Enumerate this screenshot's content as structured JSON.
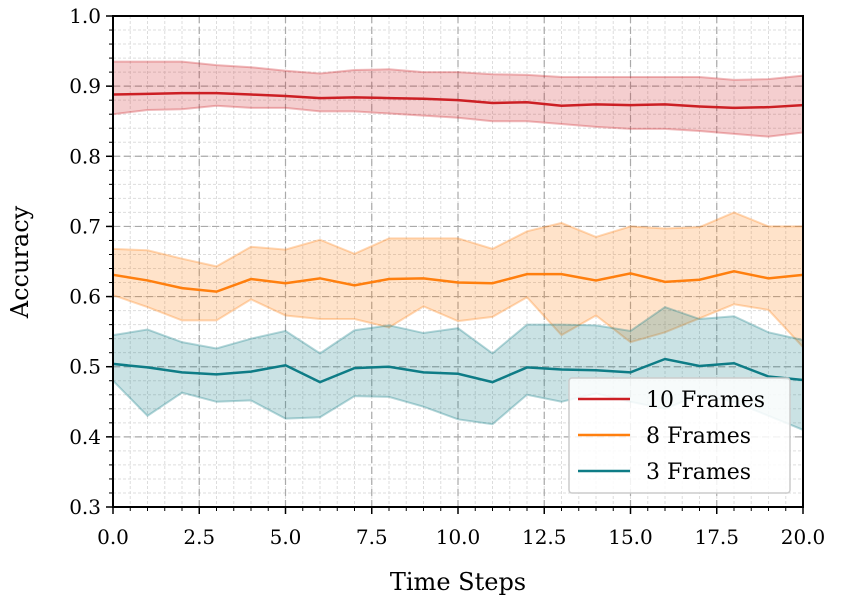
{
  "chart_data": {
    "type": "line",
    "title": "",
    "xlabel": "Time Steps",
    "ylabel": "Accuracy",
    "xlim": [
      0,
      20
    ],
    "ylim": [
      0.3,
      1.0
    ],
    "xticks": [
      "0.0",
      "2.5",
      "5.0",
      "7.5",
      "10.0",
      "12.5",
      "15.0",
      "17.5",
      "20.0"
    ],
    "yticks": [
      "0.3",
      "0.4",
      "0.5",
      "0.6",
      "0.7",
      "0.8",
      "0.9",
      "1.0"
    ],
    "grid": true,
    "minor_grid": true,
    "legend_position": "lower-right",
    "x": [
      0,
      1,
      2,
      3,
      4,
      5,
      6,
      7,
      8,
      9,
      10,
      11,
      12,
      13,
      14,
      15,
      16,
      17,
      18,
      19,
      20
    ],
    "series": [
      {
        "name": "10 Frames",
        "color": "#cc1f24",
        "mean": [
          0.888,
          0.889,
          0.89,
          0.89,
          0.888,
          0.886,
          0.883,
          0.884,
          0.883,
          0.882,
          0.88,
          0.876,
          0.877,
          0.872,
          0.874,
          0.873,
          0.874,
          0.871,
          0.869,
          0.87,
          0.873
        ],
        "upper": [
          0.935,
          0.935,
          0.935,
          0.93,
          0.927,
          0.922,
          0.918,
          0.923,
          0.924,
          0.92,
          0.92,
          0.917,
          0.916,
          0.913,
          0.913,
          0.913,
          0.913,
          0.913,
          0.909,
          0.91,
          0.915
        ],
        "lower": [
          0.86,
          0.866,
          0.867,
          0.872,
          0.869,
          0.869,
          0.864,
          0.864,
          0.861,
          0.858,
          0.855,
          0.85,
          0.85,
          0.846,
          0.842,
          0.839,
          0.839,
          0.836,
          0.832,
          0.828,
          0.834
        ]
      },
      {
        "name": "8 Frames",
        "color": "#ff7f0e",
        "mean": [
          0.631,
          0.623,
          0.612,
          0.607,
          0.625,
          0.619,
          0.626,
          0.616,
          0.625,
          0.626,
          0.62,
          0.619,
          0.632,
          0.632,
          0.623,
          0.633,
          0.621,
          0.624,
          0.636,
          0.626,
          0.631
        ],
        "upper": [
          0.668,
          0.666,
          0.654,
          0.643,
          0.671,
          0.667,
          0.681,
          0.661,
          0.683,
          0.683,
          0.683,
          0.668,
          0.693,
          0.705,
          0.685,
          0.7,
          0.697,
          0.699,
          0.72,
          0.7,
          0.7
        ],
        "lower": [
          0.602,
          0.585,
          0.566,
          0.566,
          0.596,
          0.573,
          0.568,
          0.568,
          0.556,
          0.586,
          0.565,
          0.571,
          0.599,
          0.545,
          0.573,
          0.535,
          0.549,
          0.569,
          0.589,
          0.581,
          0.528
        ]
      },
      {
        "name": "3 Frames",
        "color": "#0e7c86",
        "mean": [
          0.504,
          0.499,
          0.492,
          0.489,
          0.493,
          0.502,
          0.478,
          0.498,
          0.5,
          0.492,
          0.49,
          0.478,
          0.499,
          0.496,
          0.495,
          0.492,
          0.511,
          0.501,
          0.505,
          0.486,
          0.481
        ],
        "upper": [
          0.545,
          0.553,
          0.535,
          0.526,
          0.54,
          0.551,
          0.519,
          0.552,
          0.559,
          0.548,
          0.555,
          0.519,
          0.56,
          0.56,
          0.559,
          0.551,
          0.585,
          0.568,
          0.572,
          0.549,
          0.538
        ],
        "lower": [
          0.48,
          0.43,
          0.463,
          0.45,
          0.452,
          0.426,
          0.428,
          0.458,
          0.457,
          0.443,
          0.425,
          0.418,
          0.46,
          0.45,
          0.462,
          0.45,
          0.44,
          0.46,
          0.45,
          0.43,
          0.41
        ]
      }
    ]
  }
}
